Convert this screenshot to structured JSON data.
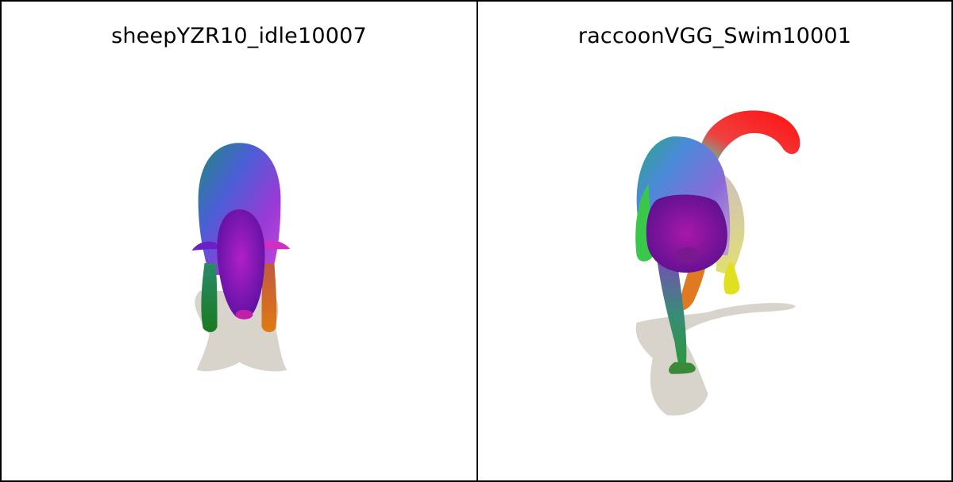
{
  "panels": [
    {
      "id": "left",
      "title": "sheepYZR10_idle10007"
    },
    {
      "id": "right",
      "title": "raccoonVGG_Swim10001"
    }
  ],
  "colors": {
    "background": "#ffffff",
    "border": "#000000",
    "shadow": "#d8d4cc"
  }
}
